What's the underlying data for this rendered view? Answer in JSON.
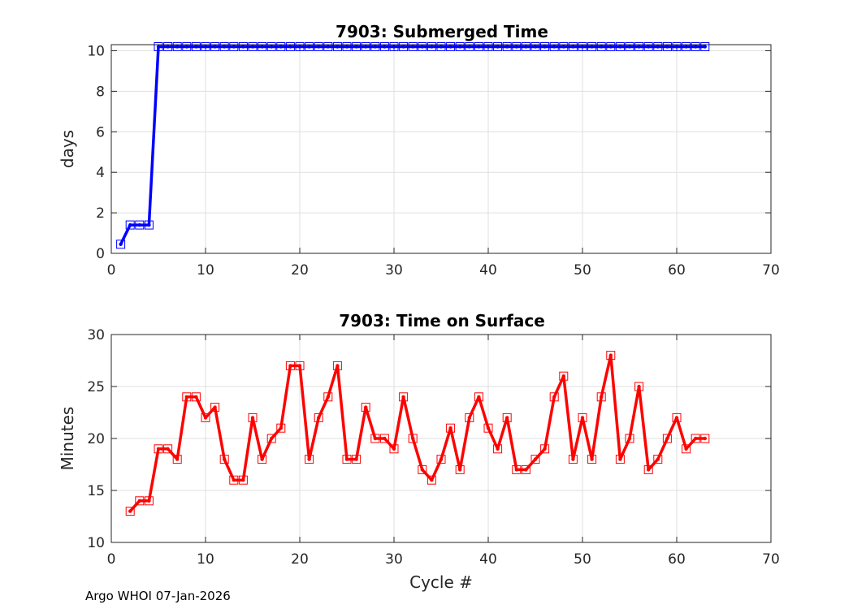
{
  "chart_data": [
    {
      "type": "line",
      "title": "7903: Submerged Time",
      "xlabel": "",
      "ylabel": "days",
      "xlim": [
        0,
        70
      ],
      "ylim": [
        0,
        10.3
      ],
      "xticks": [
        0,
        10,
        20,
        30,
        40,
        50,
        60,
        70
      ],
      "yticks": [
        0,
        2,
        4,
        6,
        8,
        10
      ],
      "grid": true,
      "color": "#0000ff",
      "marker": "square",
      "series": [
        {
          "name": "Submerged Time",
          "x": [
            1,
            2,
            3,
            4,
            5,
            6,
            7,
            8,
            9,
            10,
            11,
            12,
            13,
            14,
            15,
            16,
            17,
            18,
            19,
            20,
            21,
            22,
            23,
            24,
            25,
            26,
            27,
            28,
            29,
            30,
            31,
            32,
            33,
            34,
            35,
            36,
            37,
            38,
            39,
            40,
            41,
            42,
            43,
            44,
            45,
            46,
            47,
            48,
            49,
            50,
            51,
            52,
            53,
            54,
            55,
            56,
            57,
            58,
            59,
            60,
            61,
            62,
            63
          ],
          "y": [
            0.45,
            1.4,
            1.4,
            1.4,
            10.2,
            10.2,
            10.2,
            10.2,
            10.2,
            10.2,
            10.2,
            10.2,
            10.2,
            10.2,
            10.2,
            10.2,
            10.2,
            10.2,
            10.2,
            10.2,
            10.2,
            10.2,
            10.2,
            10.2,
            10.2,
            10.2,
            10.2,
            10.2,
            10.2,
            10.2,
            10.2,
            10.2,
            10.2,
            10.2,
            10.2,
            10.2,
            10.2,
            10.2,
            10.2,
            10.2,
            10.2,
            10.2,
            10.2,
            10.2,
            10.2,
            10.2,
            10.2,
            10.2,
            10.2,
            10.2,
            10.2,
            10.2,
            10.2,
            10.2,
            10.2,
            10.2,
            10.2,
            10.2,
            10.2,
            10.2,
            10.2,
            10.2,
            10.2
          ]
        }
      ]
    },
    {
      "type": "line",
      "title": "7903: Time on Surface",
      "xlabel": "Cycle #",
      "ylabel": "Minutes",
      "xlim": [
        0,
        70
      ],
      "ylim": [
        10,
        30
      ],
      "xticks": [
        0,
        10,
        20,
        30,
        40,
        50,
        60,
        70
      ],
      "yticks": [
        10,
        15,
        20,
        25,
        30
      ],
      "grid": true,
      "color": "#ff0000",
      "marker": "square",
      "series": [
        {
          "name": "Time on Surface",
          "x": [
            2,
            3,
            4,
            5,
            6,
            7,
            8,
            9,
            10,
            11,
            12,
            13,
            14,
            15,
            16,
            17,
            18,
            19,
            20,
            21,
            22,
            23,
            24,
            25,
            26,
            27,
            28,
            29,
            30,
            31,
            32,
            33,
            34,
            35,
            36,
            37,
            38,
            39,
            40,
            41,
            42,
            43,
            44,
            45,
            46,
            47,
            48,
            49,
            50,
            51,
            52,
            53,
            54,
            55,
            56,
            57,
            58,
            59,
            60,
            61,
            62,
            63
          ],
          "y": [
            13,
            14,
            14,
            19,
            19,
            18,
            24,
            24,
            22,
            23,
            18,
            16,
            16,
            22,
            18,
            20,
            21,
            27,
            27,
            18,
            22,
            24,
            27,
            18,
            18,
            23,
            20,
            20,
            19,
            24,
            20,
            17,
            16,
            18,
            21,
            17,
            22,
            24,
            21,
            19,
            22,
            17,
            17,
            18,
            19,
            24,
            26,
            18,
            22,
            18,
            24,
            28,
            18,
            20,
            25,
            17,
            18,
            20,
            22,
            19,
            20,
            20
          ]
        }
      ]
    }
  ],
  "footer": "Argo WHOI 07-Jan-2026"
}
